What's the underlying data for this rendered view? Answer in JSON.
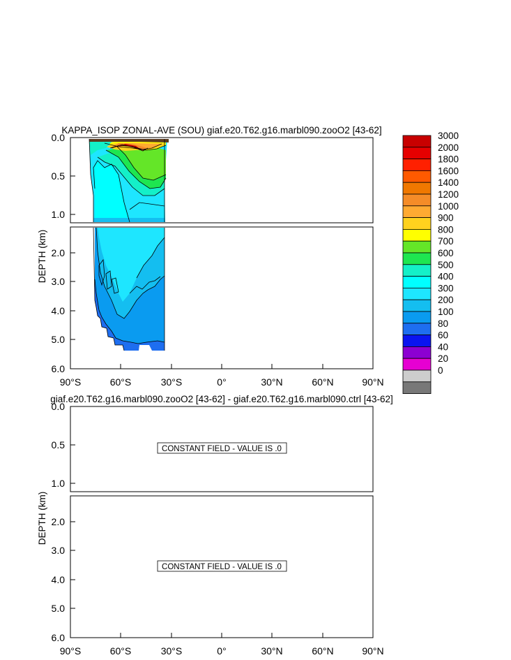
{
  "chart_data": [
    {
      "type": "filled-contour",
      "title": "KAPPA_ISOP ZONAL-AVE (SOU) giaf.e20.T62.g16.marbl090.zooO2 [43-62]",
      "ylabel": "DEPTH (km)",
      "x_ticks": [
        "90°S",
        "60°S",
        "30°S",
        "0°",
        "30°N",
        "60°N",
        "90°N"
      ],
      "x_range": [
        -90,
        90
      ],
      "y_ticks_upper": [
        "0.0",
        "0.5",
        "1.0"
      ],
      "y_ticks_lower": [
        "2.0",
        "3.0",
        "4.0",
        "5.0",
        "6.0"
      ],
      "y_range_upper_km": [
        0,
        1.15
      ],
      "y_range_lower_km": [
        1.15,
        6.0
      ],
      "colorbar": {
        "levels": [
          "3000",
          "2000",
          "1800",
          "1600",
          "1400",
          "1200",
          "1000",
          "900",
          "800",
          "700",
          "600",
          "500",
          "400",
          "300",
          "200",
          "100",
          "80",
          "60",
          "40",
          "20",
          "0"
        ],
        "colors": [
          "#c80000",
          "#e60000",
          "#ff2000",
          "#ff5a00",
          "#f07800",
          "#f58c28",
          "#ffaa32",
          "#ffd21e",
          "#ffff00",
          "#64e628",
          "#1ee650",
          "#14f0c8",
          "#00ffff",
          "#1ee6ff",
          "#14bef0",
          "#0a9bf0",
          "#1e6ef0",
          "#0a14f0",
          "#8c00d2",
          "#e600d2",
          "#cdcdcd",
          "#787878"
        ]
      },
      "data_extent": {
        "lat_south": -78,
        "lat_north": -34
      }
    },
    {
      "type": "filled-contour",
      "title": "giaf.e20.T62.g16.marbl090.zooO2 [43-62] - giaf.e20.T62.g16.marbl090.ctrl [43-62]",
      "ylabel": "DEPTH (km)",
      "x_ticks": [
        "90°S",
        "60°S",
        "30°S",
        "0°",
        "30°N",
        "60°N",
        "90°N"
      ],
      "y_ticks_upper": [
        "0.0",
        "0.5",
        "1.0"
      ],
      "y_ticks_lower": [
        "2.0",
        "3.0",
        "4.0",
        "5.0",
        "6.0"
      ],
      "annotations": [
        "CONSTANT FIELD - VALUE IS .0",
        "CONSTANT FIELD - VALUE IS .0"
      ]
    }
  ]
}
